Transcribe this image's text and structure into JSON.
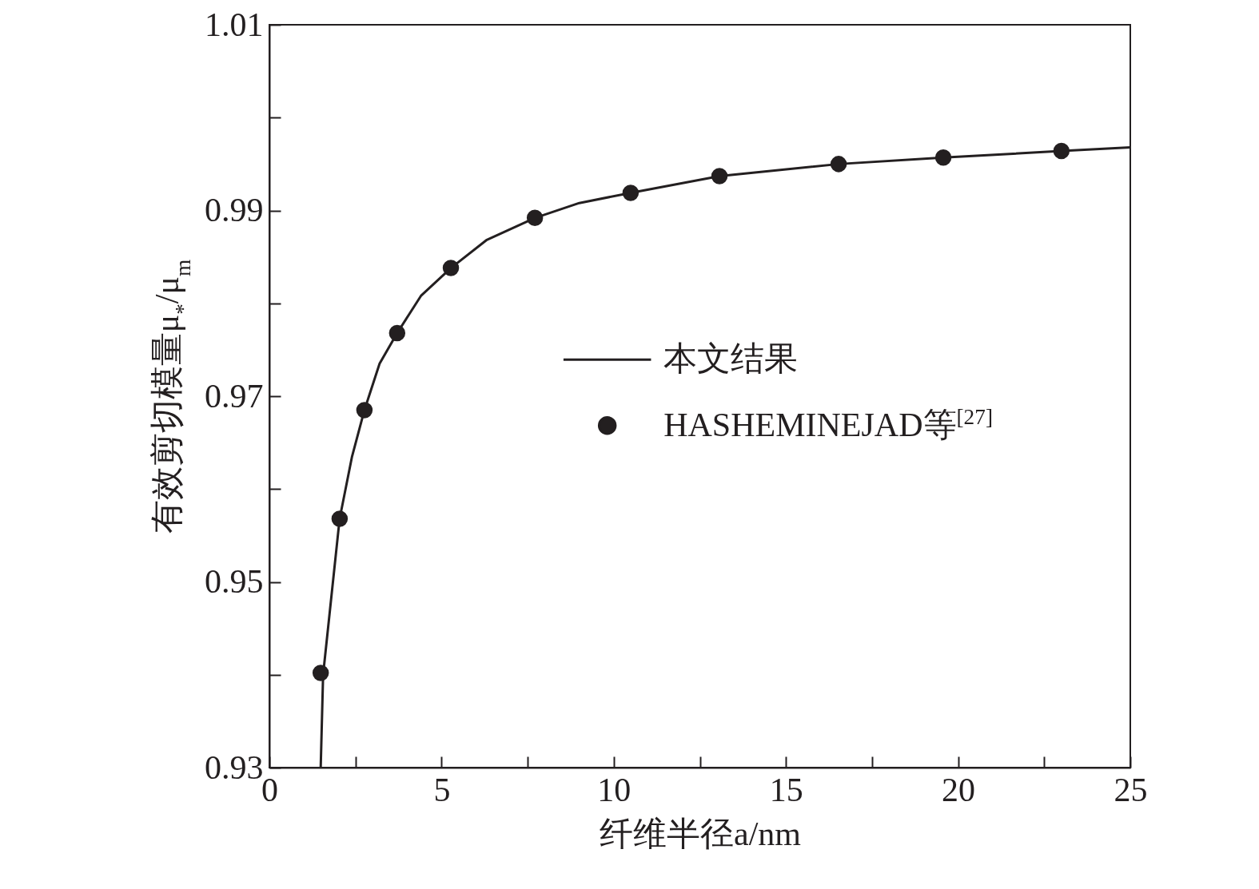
{
  "chart_data": {
    "type": "line",
    "xlabel": "纤维半径a/nm",
    "ylabel": "有效剪切模量μ$_{*}$/μ$_{m}$",
    "xlim": [
      0,
      25
    ],
    "xticks": [
      0,
      {
        "value": 2.5,
        "label": null
      },
      5,
      {
        "value": 7.5,
        "label": null
      },
      10,
      {
        "value": 12.5,
        "label": null
      },
      15,
      {
        "value": 17.5,
        "label": null
      },
      20,
      {
        "value": 22.5,
        "label": null
      },
      25
    ],
    "ylim": [
      0.93,
      1.01
    ],
    "yticks": [
      0.93,
      {
        "value": 0.94,
        "label": null
      },
      0.95,
      {
        "value": 0.96,
        "label": null
      },
      0.97,
      {
        "value": 0.98,
        "label": null
      },
      0.99,
      {
        "value": 1.0,
        "label": null
      },
      1.01
    ],
    "legend": "right",
    "grid": false,
    "series": [
      {
        "name": "本文结果",
        "color": "#231f20",
        "x": [
          1.49,
          1.56,
          2.04,
          2.4,
          2.76,
          3.2,
          3.71,
          4.4,
          5.27,
          6.3,
          7.71,
          9,
          10.49,
          13.07,
          16.53,
          19.57,
          23,
          25
        ],
        "values": [
          0.93,
          0.94,
          0.9568,
          0.9635,
          0.9685,
          0.9735,
          0.9768,
          0.9808,
          0.9838,
          0.9868,
          0.9892,
          0.9908,
          0.9919,
          0.9937,
          0.995,
          0.9957,
          0.9964,
          0.9968
        ]
      },
      {
        "name": "HASHEMINEJAD等$^{[27]}$",
        "type": "scatter",
        "marker": "circle",
        "color": "#231f20",
        "x": [
          1.49,
          2.04,
          2.76,
          3.71,
          5.27,
          7.71,
          10.49,
          13.07,
          16.53,
          19.57,
          23
        ],
        "values": [
          0.9402,
          0.9568,
          0.9685,
          0.9768,
          0.9838,
          0.9892,
          0.9919,
          0.9937,
          0.995,
          0.9957,
          0.9964
        ]
      }
    ]
  }
}
